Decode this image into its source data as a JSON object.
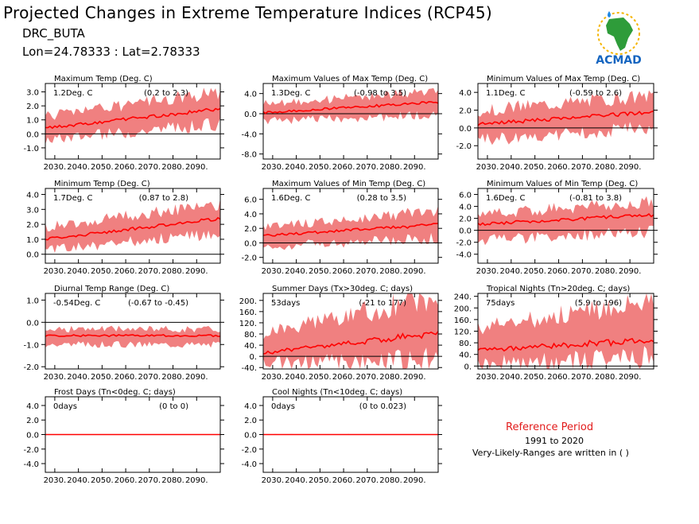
{
  "header": {
    "title": "Projected Changes in Extreme Temperature Indices (RCP45)",
    "location": "DRC_BUTA",
    "coords": "Lon=24.78333 : Lat=2.78333",
    "logo_text": "ACMAD"
  },
  "reference": {
    "title": "Reference Period",
    "years": "1991 to 2020",
    "note": "Very-Likely-Ranges are written in ( )"
  },
  "colors": {
    "band": "#f08080",
    "line": "#ff0000",
    "zero": "#000000",
    "ref_title": "#e21b1b"
  },
  "chart_data": [
    {
      "type": "area",
      "title": "Maximum Temp (Deg. C)",
      "value_label": "1.2Deg. C",
      "range_label": "(0.2 to 2.3)",
      "x_ticks": [
        "2030.",
        "2040.",
        "2050.",
        "2060.",
        "2070.",
        "2080.",
        "2090."
      ],
      "y_ticks": [
        "3.0",
        "2.0",
        "1.0",
        "0.0",
        "-1.0"
      ],
      "y_tick_values": [
        3,
        2,
        1,
        0,
        -1
      ],
      "ylim": [
        -1.8,
        3.6
      ],
      "xlim": [
        2026,
        2100
      ],
      "x": [
        2026,
        2100
      ],
      "median": [
        0.4,
        1.8
      ],
      "low": [
        -0.4,
        0.7
      ],
      "high": [
        1.3,
        3.0
      ]
    },
    {
      "type": "area",
      "title": "Maximum Values of Max Temp (Deg. C)",
      "value_label": "1.3Deg. C",
      "range_label": "(-0.98 to 3.5)",
      "x_ticks": [
        "2030.",
        "2040.",
        "2050.",
        "2060.",
        "2070.",
        "2080.",
        "2090."
      ],
      "y_ticks": [
        "4.0",
        "0.0",
        "-4.0",
        "-8.0"
      ],
      "y_tick_values": [
        4,
        0,
        -4,
        -8
      ],
      "ylim": [
        -9,
        6
      ],
      "xlim": [
        2026,
        2100
      ],
      "x": [
        2026,
        2100
      ],
      "median": [
        0.2,
        2.3
      ],
      "low": [
        -1.5,
        -0.2
      ],
      "high": [
        2.0,
        4.4
      ]
    },
    {
      "type": "area",
      "title": "Minimum Values of Max Temp (Deg. C)",
      "value_label": "1.1Deg. C",
      "range_label": "(-0.59 to 2.6)",
      "x_ticks": [
        "2030.",
        "2040.",
        "2050.",
        "2060.",
        "2070.",
        "2080.",
        "2090."
      ],
      "y_ticks": [
        "4.0",
        "2.0",
        "0.0",
        "-2.0"
      ],
      "y_tick_values": [
        4,
        2,
        0,
        -2
      ],
      "ylim": [
        -3.5,
        5
      ],
      "xlim": [
        2026,
        2100
      ],
      "x": [
        2026,
        2100
      ],
      "median": [
        0.4,
        1.8
      ],
      "low": [
        -1.4,
        0.1
      ],
      "high": [
        2.0,
        3.6
      ]
    },
    {
      "type": "area",
      "title": "Minimum Temp (Deg. C)",
      "value_label": "1.7Deg. C",
      "range_label": "(0.87 to 2.8)",
      "x_ticks": [
        "2030.",
        "2040.",
        "2050.",
        "2060.",
        "2070.",
        "2080.",
        "2090."
      ],
      "y_ticks": [
        "4.0",
        "3.0",
        "2.0",
        "1.0",
        "0.0"
      ],
      "y_tick_values": [
        4,
        3,
        2,
        1,
        0
      ],
      "ylim": [
        -0.6,
        4.4
      ],
      "xlim": [
        2026,
        2100
      ],
      "x": [
        2026,
        2100
      ],
      "median": [
        1.0,
        2.4
      ],
      "low": [
        0.3,
        1.4
      ],
      "high": [
        1.8,
        3.4
      ]
    },
    {
      "type": "area",
      "title": "Maximum Values of Min Temp (Deg. C)",
      "value_label": "1.6Deg. C",
      "range_label": "(0.28 to 3.5)",
      "x_ticks": [
        "2030.",
        "2040.",
        "2050.",
        "2060.",
        "2070.",
        "2080.",
        "2090."
      ],
      "y_ticks": [
        "6.0",
        "4.0",
        "2.0",
        "0.0",
        "-2.0"
      ],
      "y_tick_values": [
        6,
        4,
        2,
        0,
        -2
      ],
      "ylim": [
        -2.8,
        7.5
      ],
      "xlim": [
        2026,
        2100
      ],
      "x": [
        2026,
        2100
      ],
      "median": [
        1.0,
        2.5
      ],
      "low": [
        -0.5,
        0.6
      ],
      "high": [
        2.2,
        4.4
      ]
    },
    {
      "type": "area",
      "title": "Minimum Values of Min Temp (Deg. C)",
      "value_label": "1.6Deg. C",
      "range_label": "(-0.81 to 3.8)",
      "x_ticks": [
        "2030.",
        "2040.",
        "2050.",
        "2060.",
        "2070.",
        "2080.",
        "2090."
      ],
      "y_ticks": [
        "6.0",
        "4.0",
        "2.0",
        "0.0",
        "-2.0",
        "-4.0"
      ],
      "y_tick_values": [
        6,
        4,
        2,
        0,
        -2,
        -4
      ],
      "ylim": [
        -5.5,
        7
      ],
      "xlim": [
        2026,
        2100
      ],
      "x": [
        2026,
        2100
      ],
      "median": [
        1.0,
        2.6
      ],
      "low": [
        -1.6,
        -0.3
      ],
      "high": [
        2.8,
        4.8
      ]
    },
    {
      "type": "area",
      "title": "Diurnal Temp Range (Deg. C)",
      "value_label": "-0.54Deg. C",
      "range_label": "(-0.67 to -0.45)",
      "x_ticks": [
        "2030.",
        "2040.",
        "2050.",
        "2060.",
        "2070.",
        "2080.",
        "2090."
      ],
      "y_ticks": [
        "1.0",
        "0.0",
        "-1.0",
        "-2.0"
      ],
      "y_tick_values": [
        1,
        0,
        -1,
        -2
      ],
      "ylim": [
        -2.1,
        1.3
      ],
      "xlim": [
        2026,
        2100
      ],
      "x": [
        2026,
        2100
      ],
      "median": [
        -0.6,
        -0.6
      ],
      "low": [
        -1.0,
        -1.0
      ],
      "high": [
        -0.3,
        -0.3
      ]
    },
    {
      "type": "area",
      "title": "Summer Days (Tx>30deg. C; days)",
      "value_label": "53days",
      "range_label": "(-21 to 177)",
      "x_ticks": [
        "2030.",
        "2040.",
        "2050.",
        "2060.",
        "2070.",
        "2080.",
        "2090."
      ],
      "y_ticks": [
        "200.",
        "160.",
        "120.",
        "80.",
        "40.",
        "0.",
        "-40."
      ],
      "y_tick_values": [
        200,
        160,
        120,
        80,
        40,
        0,
        -40
      ],
      "ylim": [
        -45,
        225
      ],
      "xlim": [
        2026,
        2100
      ],
      "x": [
        2026,
        2100
      ],
      "median": [
        12,
        85
      ],
      "low": [
        -25,
        -10
      ],
      "high": [
        80,
        215
      ]
    },
    {
      "type": "area",
      "title": "Tropical Nights (Tn>20deg. C; days)",
      "value_label": "75days",
      "range_label": "(5.9 to 196)",
      "x_ticks": [
        "2030.",
        "2040.",
        "2050.",
        "2060.",
        "2070.",
        "2080.",
        "2090."
      ],
      "y_ticks": [
        "240.",
        "200.",
        "160.",
        "120.",
        "80.",
        "40.",
        "0."
      ],
      "y_tick_values": [
        240,
        200,
        160,
        120,
        80,
        40,
        0
      ],
      "ylim": [
        -10,
        250
      ],
      "xlim": [
        2026,
        2100
      ],
      "x": [
        2026,
        2100
      ],
      "median": [
        55,
        90
      ],
      "low": [
        10,
        25
      ],
      "high": [
        130,
        230
      ]
    },
    {
      "type": "area",
      "title": "Frost Days (Tn<0deg. C; days)",
      "value_label": "0days",
      "range_label": "(0 to 0)",
      "x_ticks": [
        "2030.",
        "2040.",
        "2050.",
        "2060.",
        "2070.",
        "2080.",
        "2090."
      ],
      "y_ticks": [
        "4.0",
        "2.0",
        "0.0",
        "-2.0",
        "-4.0"
      ],
      "y_tick_values": [
        4,
        2,
        0,
        -2,
        -4
      ],
      "ylim": [
        -5.2,
        5.2
      ],
      "xlim": [
        2026,
        2100
      ],
      "x": [
        2026,
        2100
      ],
      "median": [
        0,
        0
      ],
      "low": [
        0,
        0
      ],
      "high": [
        0,
        0
      ]
    },
    {
      "type": "area",
      "title": "Cool Nights (Tn<10deg. C; days)",
      "value_label": "0days",
      "range_label": "(0 to 0.023)",
      "x_ticks": [
        "2030.",
        "2040.",
        "2050.",
        "2060.",
        "2070.",
        "2080.",
        "2090."
      ],
      "y_ticks": [
        "4.0",
        "2.0",
        "0.0",
        "-2.0",
        "-4.0"
      ],
      "y_tick_values": [
        4,
        2,
        0,
        -2,
        -4
      ],
      "ylim": [
        -5.2,
        5.2
      ],
      "xlim": [
        2026,
        2100
      ],
      "x": [
        2026,
        2100
      ],
      "median": [
        0,
        0
      ],
      "low": [
        0,
        0
      ],
      "high": [
        0.05,
        0.05
      ]
    }
  ]
}
